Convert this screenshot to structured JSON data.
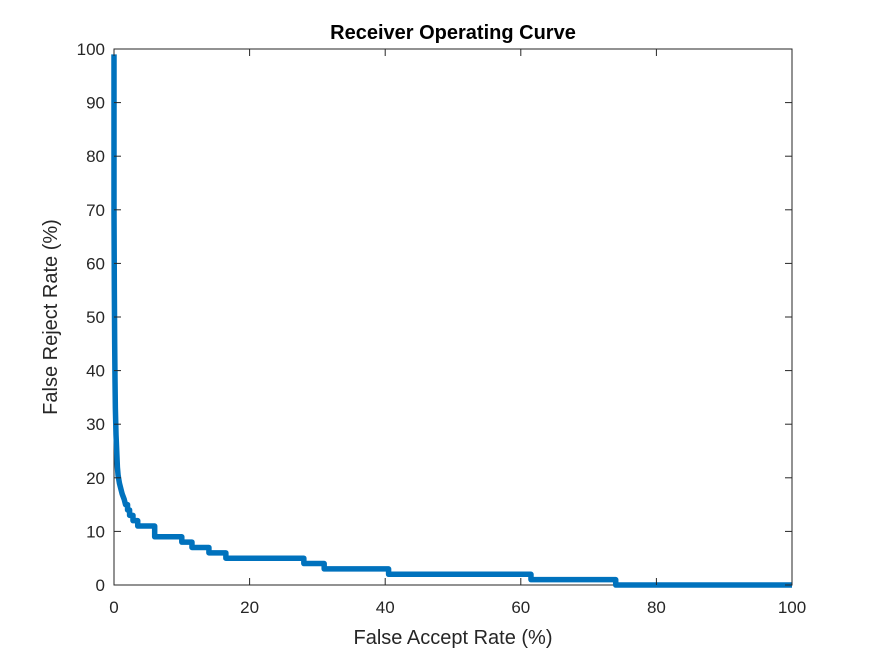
{
  "chart_data": {
    "type": "line",
    "title": "Receiver Operating Curve",
    "xlabel": "False Accept Rate (%)",
    "ylabel": "False Reject Rate (%)",
    "xlim": [
      0,
      100
    ],
    "ylim": [
      0,
      100
    ],
    "xticks": [
      "0",
      "20",
      "40",
      "60",
      "80",
      "100"
    ],
    "yticks": [
      "0",
      "10",
      "20",
      "30",
      "40",
      "50",
      "60",
      "70",
      "80",
      "90",
      "100"
    ],
    "grid": false,
    "legend": "none",
    "series": [
      {
        "color": "#0072BD",
        "x": [
          0,
          0,
          0.05,
          0.1,
          0.15,
          0.2,
          0.3,
          0.4,
          0.5,
          0.6,
          0.8,
          1.0,
          1.2,
          1.5,
          1.7,
          2.0,
          2.0,
          2.3,
          2.3,
          2.8,
          2.8,
          3.5,
          3.5,
          6.0,
          6.0,
          10.0,
          10.0,
          11.5,
          11.5,
          14.0,
          14.0,
          16.5,
          16.5,
          28.0,
          28.0,
          31.0,
          31.0,
          40.5,
          40.5,
          61.5,
          61.5,
          74.0,
          74.0,
          100.0
        ],
        "y": [
          99,
          70,
          55,
          45,
          38,
          33,
          28,
          25,
          22,
          20.5,
          19,
          18,
          17,
          16,
          15,
          15,
          14,
          14,
          13,
          13,
          12,
          12,
          11,
          11,
          9,
          9,
          8,
          8,
          7,
          7,
          6,
          6,
          5,
          5,
          4,
          4,
          3,
          3,
          2,
          2,
          1,
          1,
          0,
          0
        ]
      }
    ]
  }
}
